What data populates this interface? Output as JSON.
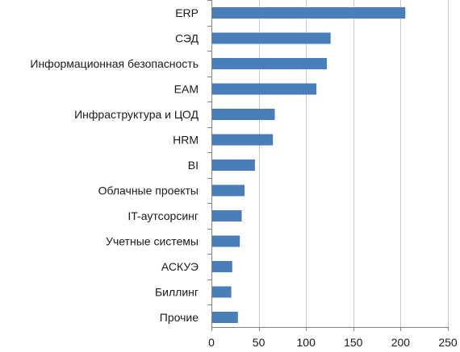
{
  "chart_data": {
    "type": "bar",
    "orientation": "horizontal",
    "categories": [
      "ERP",
      "СЭД",
      "Информационная безопасность",
      "EAM",
      "Инфраструктура и ЦОД",
      "HRM",
      "BI",
      "Облачные проекты",
      "IT-аутсорсинг",
      "Учетные системы",
      "АСКУЭ",
      "Биллинг",
      "Прочие"
    ],
    "values": [
      205,
      126,
      122,
      111,
      67,
      65,
      46,
      35,
      32,
      30,
      22,
      21,
      28
    ],
    "xlim": [
      0,
      250
    ],
    "xticks": [
      "0",
      "50",
      "100",
      "150",
      "200",
      "250"
    ],
    "grid": "vertical",
    "legend": "none",
    "bar_color": "#4a7ebb"
  }
}
